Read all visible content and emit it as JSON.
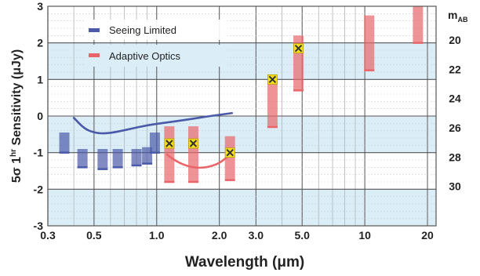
{
  "chart_data": {
    "type": "scatter",
    "xlabel": "Wavelength (μm)",
    "ylabel": "5σ 1hr Sensitivity (μJy)",
    "ylabel_parts": {
      "pre": "5σ 1",
      "sup": "hr",
      "post": " Sensitivity (μJy)"
    },
    "right_axis_label": "m",
    "right_axis_label_sub": "AB",
    "x_scale": "log",
    "xlim": [
      0.3,
      22
    ],
    "ylim": [
      -3,
      3
    ],
    "x_ticks": [
      0.3,
      0.5,
      1.0,
      2.0,
      3.0,
      5.0,
      10,
      20
    ],
    "x_tick_labels": [
      "0.3",
      "0.5",
      "1.0",
      "2.0",
      "3.0",
      "5.0",
      "10",
      "20"
    ],
    "y_ticks": [
      -3,
      -2,
      -1,
      0,
      1,
      2,
      3
    ],
    "y_tick_labels": [
      "-3",
      "-2",
      "-1",
      "0",
      "1",
      "2",
      "3"
    ],
    "right_ticks": [
      {
        "y": 2.08,
        "label": "20"
      },
      {
        "y": 1.28,
        "label": "22"
      },
      {
        "y": 0.48,
        "label": "24"
      },
      {
        "y": -0.32,
        "label": "26"
      },
      {
        "y": -1.12,
        "label": "28"
      },
      {
        "y": -1.92,
        "label": "30"
      }
    ],
    "grid": true,
    "background_bands": [
      {
        "y0": 1,
        "y1": 2,
        "color": "#dbeef7"
      },
      {
        "y0": -1,
        "y1": 0,
        "color": "#dbeef7"
      },
      {
        "y0": -3,
        "y1": -2,
        "color": "#dbeef7"
      }
    ],
    "legend_position": "top-left",
    "series": [
      {
        "name": "Seeing Limited",
        "color": "#4b5aa8",
        "bars": [
          {
            "x": 0.36,
            "low": -1.0,
            "high": -0.45
          },
          {
            "x": 0.44,
            "low": -1.4,
            "high": -0.9
          },
          {
            "x": 0.55,
            "low": -1.45,
            "high": -0.9
          },
          {
            "x": 0.65,
            "low": -1.4,
            "high": -0.9
          },
          {
            "x": 0.8,
            "low": -1.35,
            "high": -0.9
          },
          {
            "x": 0.9,
            "low": -1.3,
            "high": -0.85
          },
          {
            "x": 0.98,
            "low": -1.0,
            "high": -0.45
          }
        ],
        "curve": [
          [
            0.4,
            -0.05
          ],
          [
            0.45,
            -0.35
          ],
          [
            0.5,
            -0.45
          ],
          [
            0.55,
            -0.48
          ],
          [
            0.62,
            -0.45
          ],
          [
            0.75,
            -0.35
          ],
          [
            0.9,
            -0.25
          ],
          [
            1.1,
            -0.18
          ],
          [
            1.4,
            -0.1
          ],
          [
            1.8,
            0.0
          ],
          [
            2.3,
            0.08
          ]
        ]
      },
      {
        "name": "Adaptive Optics",
        "color": "#e8666a",
        "bars": [
          {
            "x": 1.15,
            "low": -1.8,
            "high": -0.28
          },
          {
            "x": 1.5,
            "low": -1.8,
            "high": -0.28
          },
          {
            "x": 2.25,
            "low": -1.75,
            "high": -0.55
          },
          {
            "x": 3.6,
            "low": -0.3,
            "high": 1.0
          },
          {
            "x": 4.8,
            "low": 0.7,
            "high": 2.2
          },
          {
            "x": 10.5,
            "low": 1.25,
            "high": 2.75
          },
          {
            "x": 18,
            "low": 2.0,
            "high": 3.0
          }
        ],
        "curve": [
          [
            1.12,
            -1.05
          ],
          [
            1.25,
            -1.25
          ],
          [
            1.45,
            -1.4
          ],
          [
            1.7,
            -1.42
          ],
          [
            2.0,
            -1.3
          ],
          [
            2.25,
            -1.05
          ]
        ]
      }
    ],
    "markers": [
      {
        "x": 1.15,
        "y": -0.75
      },
      {
        "x": 1.5,
        "y": -0.75
      },
      {
        "x": 2.25,
        "y": -1.0
      },
      {
        "x": 3.6,
        "y": 1.0
      },
      {
        "x": 4.8,
        "y": 1.85
      }
    ],
    "marker_style": {
      "fill": "#f4e01c",
      "cross": "#333333"
    }
  }
}
